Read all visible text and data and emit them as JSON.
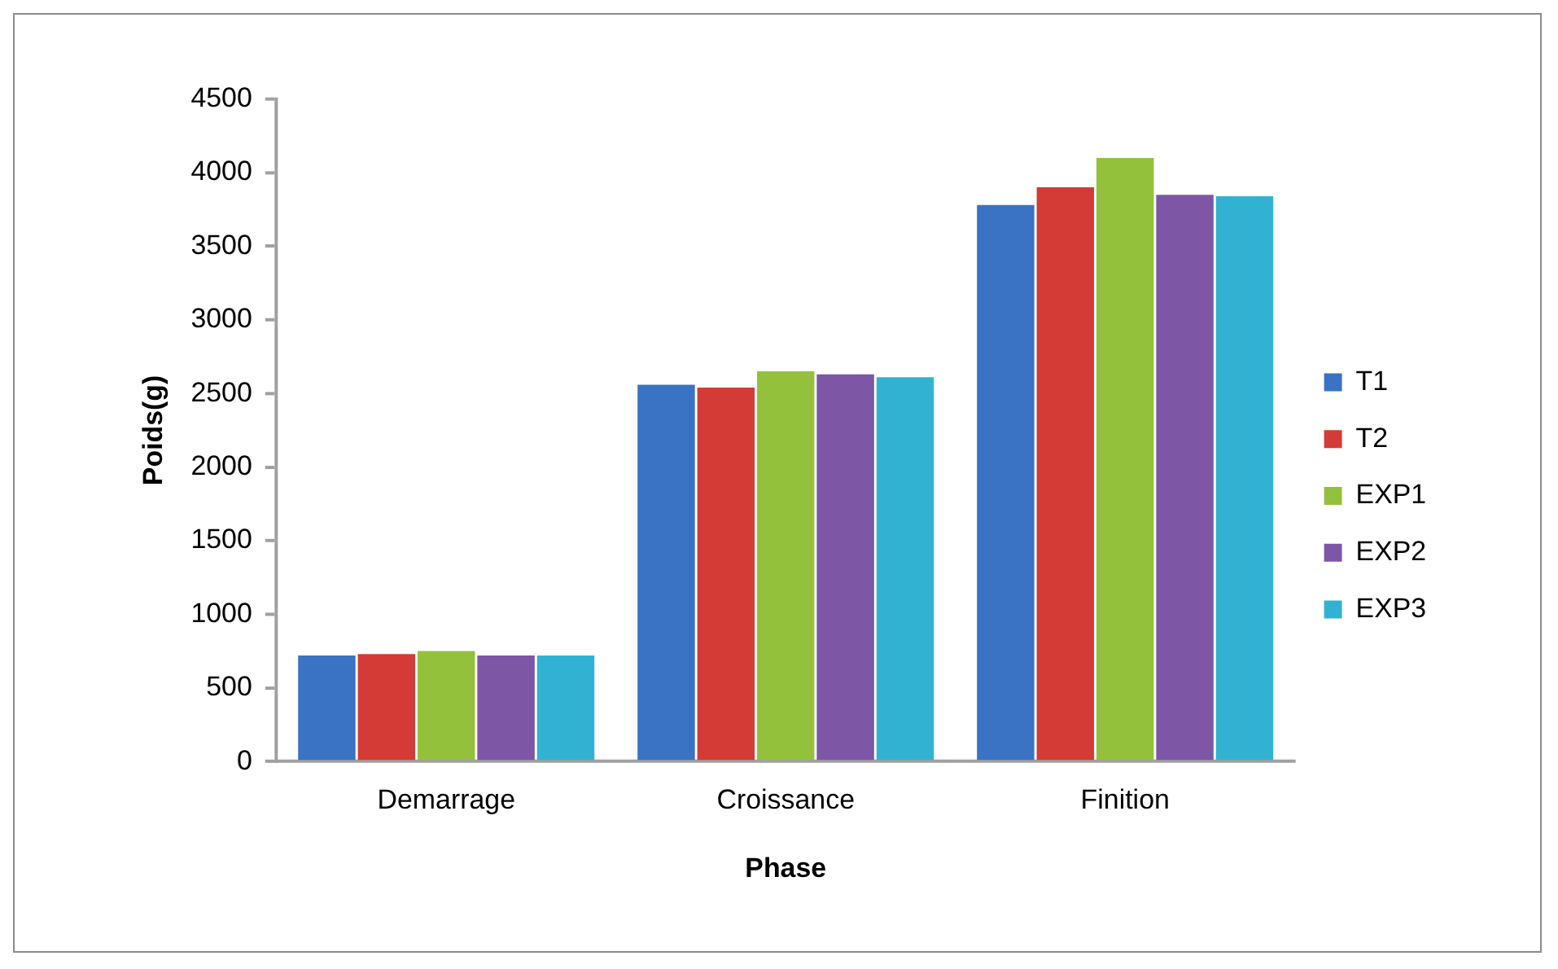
{
  "chart_data": {
    "type": "bar",
    "xlabel": "Phase",
    "ylabel": "Poids(g)",
    "categories": [
      "Demarrage",
      "Croissance",
      "Finition"
    ],
    "series": [
      {
        "name": "T1",
        "color": "#3a72c4",
        "values": [
          720,
          2560,
          3780
        ]
      },
      {
        "name": "T2",
        "color": "#d43b36",
        "values": [
          730,
          2540,
          3900
        ]
      },
      {
        "name": "EXP1",
        "color": "#93c13b",
        "values": [
          750,
          2650,
          4100
        ]
      },
      {
        "name": "EXP2",
        "color": "#7d56a6",
        "values": [
          720,
          2630,
          3850
        ]
      },
      {
        "name": "EXP3",
        "color": "#32b2d3",
        "values": [
          720,
          2610,
          3840
        ]
      }
    ],
    "ylim": [
      0,
      4500
    ],
    "yticks": [
      0,
      500,
      1000,
      1500,
      2000,
      2500,
      3000,
      3500,
      4000,
      4500
    ],
    "grid": false,
    "legend": "right"
  }
}
